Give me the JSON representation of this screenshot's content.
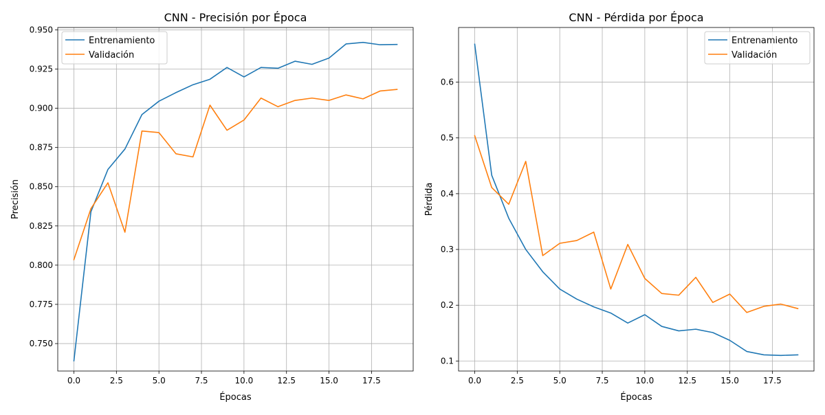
{
  "chart_data": [
    {
      "type": "line",
      "title": "CNN - Precisión por Época",
      "xlabel": "Épocas",
      "ylabel": "Precisión",
      "xlim": [
        -0.95,
        19.95
      ],
      "ylim": [
        0.7325,
        0.9515
      ],
      "xticks": [
        0.0,
        2.5,
        5.0,
        7.5,
        10.0,
        12.5,
        15.0,
        17.5
      ],
      "xtick_labels": [
        "0.0",
        "2.5",
        "5.0",
        "7.5",
        "10.0",
        "12.5",
        "15.0",
        "17.5"
      ],
      "yticks": [
        0.75,
        0.775,
        0.8,
        0.825,
        0.85,
        0.875,
        0.9,
        0.925,
        0.95
      ],
      "ytick_labels": [
        "0.750",
        "0.775",
        "0.800",
        "0.825",
        "0.850",
        "0.875",
        "0.900",
        "0.925",
        "0.950"
      ],
      "grid": true,
      "legend_position": "top-left",
      "x": [
        0,
        1,
        2,
        3,
        4,
        5,
        6,
        7,
        8,
        9,
        10,
        11,
        12,
        13,
        14,
        15,
        16,
        17,
        18,
        19
      ],
      "series": [
        {
          "name": "Entrenamiento",
          "color": "#1f77b4",
          "values": [
            0.739,
            0.834,
            0.861,
            0.874,
            0.896,
            0.9045,
            0.91,
            0.915,
            0.9185,
            0.926,
            0.92,
            0.926,
            0.9255,
            0.93,
            0.928,
            0.932,
            0.941,
            0.942,
            0.9405,
            0.9407
          ]
        },
        {
          "name": "Validación",
          "color": "#ff7f0e",
          "values": [
            0.8035,
            0.836,
            0.8525,
            0.821,
            0.8855,
            0.8845,
            0.871,
            0.869,
            0.902,
            0.886,
            0.8925,
            0.9065,
            0.901,
            0.905,
            0.9065,
            0.905,
            0.9085,
            0.906,
            0.911,
            0.912
          ]
        }
      ]
    },
    {
      "type": "line",
      "title": "CNN - Pérdida por Época",
      "xlabel": "Épocas",
      "ylabel": "Pérdida",
      "xlim": [
        -0.95,
        19.95
      ],
      "ylim": [
        0.082,
        0.698
      ],
      "xticks": [
        0.0,
        2.5,
        5.0,
        7.5,
        10.0,
        12.5,
        15.0,
        17.5
      ],
      "xtick_labels": [
        "0.0",
        "2.5",
        "5.0",
        "7.5",
        "10.0",
        "12.5",
        "15.0",
        "17.5"
      ],
      "yticks": [
        0.1,
        0.2,
        0.3,
        0.4,
        0.5,
        0.6
      ],
      "ytick_labels": [
        "0.1",
        "0.2",
        "0.3",
        "0.4",
        "0.5",
        "0.6"
      ],
      "grid": true,
      "legend_position": "top-right",
      "x": [
        0,
        1,
        2,
        3,
        4,
        5,
        6,
        7,
        8,
        9,
        10,
        11,
        12,
        13,
        14,
        15,
        16,
        17,
        18,
        19
      ],
      "series": [
        {
          "name": "Entrenamiento",
          "color": "#1f77b4",
          "values": [
            0.668,
            0.433,
            0.356,
            0.3,
            0.26,
            0.229,
            0.211,
            0.197,
            0.186,
            0.168,
            0.183,
            0.162,
            0.154,
            0.157,
            0.151,
            0.137,
            0.117,
            0.111,
            0.11,
            0.111
          ]
        },
        {
          "name": "Validación",
          "color": "#ff7f0e",
          "values": [
            0.504,
            0.411,
            0.381,
            0.458,
            0.289,
            0.311,
            0.316,
            0.331,
            0.229,
            0.309,
            0.248,
            0.221,
            0.218,
            0.25,
            0.205,
            0.22,
            0.187,
            0.198,
            0.202,
            0.194
          ]
        }
      ]
    }
  ]
}
